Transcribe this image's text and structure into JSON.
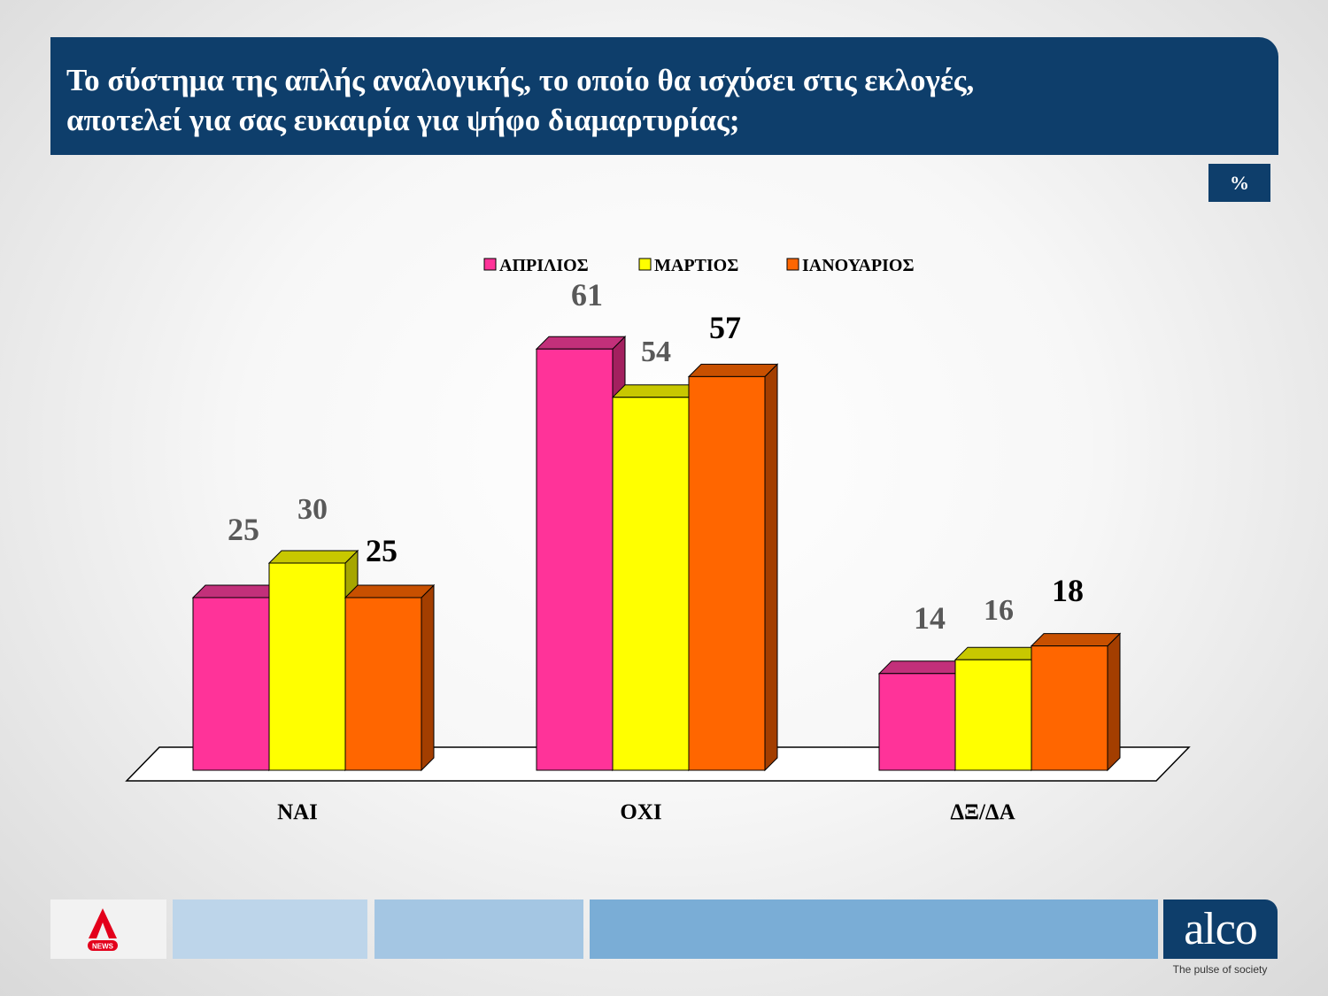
{
  "header": {
    "title_line1": "Το σύστημα της απλής αναλογικής, το οποίο θα ισχύσει στις εκλογές,",
    "title_line2": "αποτελεί για σας ευκαιρία για ψήφο διαμαρτυρίας;"
  },
  "unit_label": "%",
  "chart_data": {
    "type": "bar",
    "style": "3d-clustered",
    "categories": [
      "ΝΑΙ",
      "ΟΧΙ",
      "ΔΞ/ΔΑ"
    ],
    "series": [
      {
        "name": "ΑΠΡΙΛΙΟΣ",
        "values": [
          25,
          61,
          14
        ],
        "color": "#ff3399",
        "top_color": "#c2307a",
        "side_color": "#a3205f",
        "label_color": "#595959"
      },
      {
        "name": "ΜΑΡΤΙΟΣ",
        "values": [
          30,
          54,
          16
        ],
        "color": "#ffff00",
        "top_color": "#c8c800",
        "side_color": "#a6a600",
        "label_color": "#595959"
      },
      {
        "name": "ΙΑΝΟΥΑΡΙΟΣ",
        "values": [
          25,
          57,
          18
        ],
        "color": "#ff6600",
        "top_color": "#c85000",
        "side_color": "#a33e00",
        "label_color": "#000000"
      }
    ],
    "legend_position": "top",
    "grid": false,
    "ylim": [
      0,
      70
    ]
  },
  "footer": {
    "alpha_badge_text": "NEWS",
    "brand": "alco",
    "tagline": "The pulse of society"
  }
}
